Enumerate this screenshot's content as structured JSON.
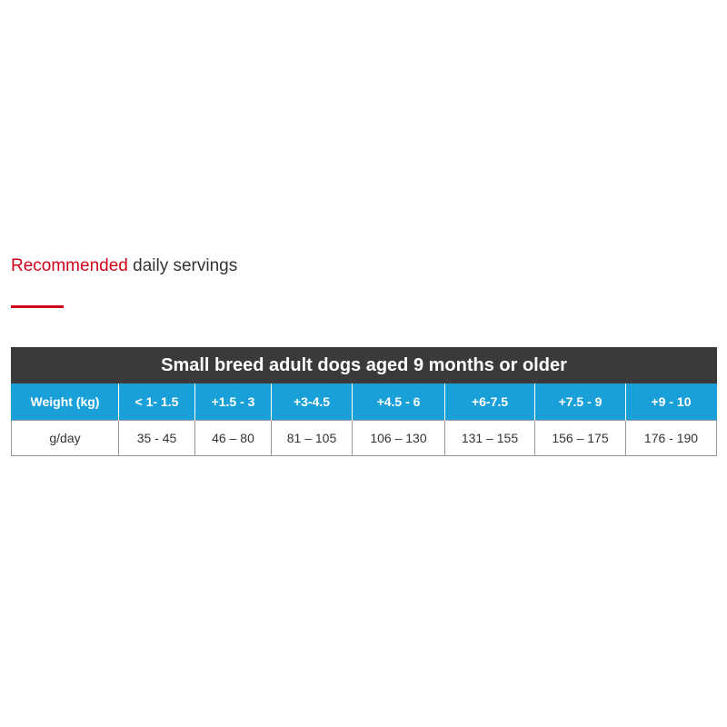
{
  "colors": {
    "accent": "#d0021b",
    "title_bar": "#3a3a3a",
    "header_row": "#1aa0d8",
    "text": "#333333"
  },
  "heading": {
    "accent_text": "Recommended",
    "rest_text": " daily servings"
  },
  "table": {
    "title": "Small breed adult dogs aged 9 months or older",
    "headers": [
      "Weight (kg)",
      "< 1- 1.5",
      "+1.5 - 3",
      "+3-4.5",
      "+4.5 - 6",
      "+6-7.5",
      "+7.5 - 9",
      "+9 - 10"
    ],
    "row": [
      "g/day",
      "35 - 45",
      "46 – 80",
      "81 – 105",
      "106 – 130",
      "131 – 155",
      "156 – 175",
      "176 - 190"
    ]
  }
}
